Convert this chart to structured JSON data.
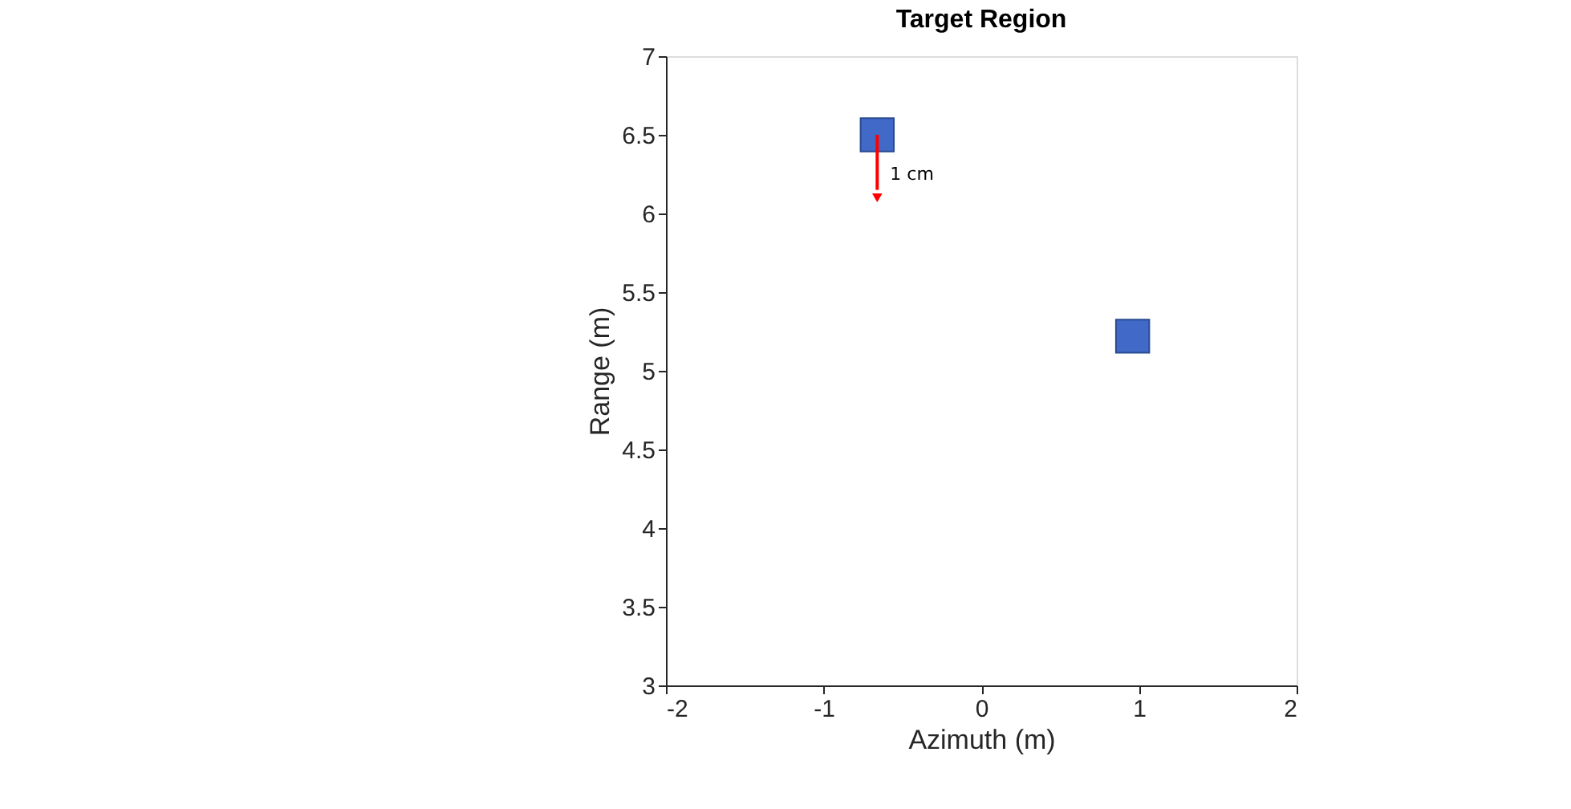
{
  "chart_data": {
    "type": "scatter",
    "title": "Target Region",
    "xlabel": "Azimuth (m)",
    "ylabel": "Range (m)",
    "x": [
      -0.66,
      0.96
    ],
    "values": [
      6.5,
      5.22
    ],
    "color": "#4169c8",
    "marker": "square",
    "xlim": [
      -2,
      2
    ],
    "ylim": [
      3,
      7
    ],
    "xticks": [
      -2,
      -1,
      0,
      1,
      2
    ],
    "yticks": [
      3,
      3.5,
      4,
      4.5,
      5,
      5.5,
      6,
      6.5,
      7
    ],
    "grid": false,
    "annotations": [
      {
        "text": "1 cm",
        "x": -0.66,
        "y": 6.1
      }
    ]
  }
}
